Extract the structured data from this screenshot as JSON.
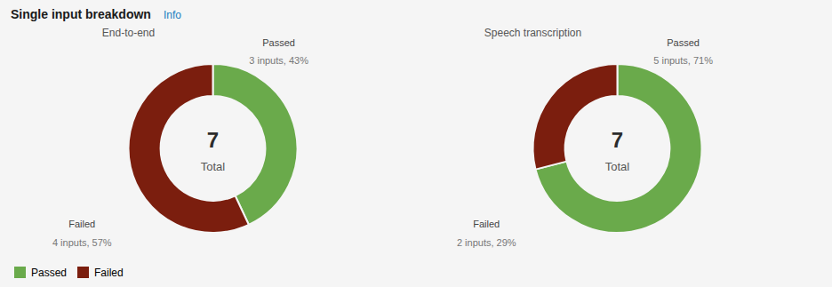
{
  "title": "Single input breakdown",
  "subtitle": "Info",
  "chart_data": [
    {
      "type": "pie",
      "title": "End-to-end",
      "total": 7,
      "center_label": "Total",
      "categories": [
        "Passed",
        "Failed"
      ],
      "values": [
        43,
        57
      ],
      "value_labels": [
        "3 inputs, 43%",
        "4 inputs, 57%"
      ],
      "colors": [
        "#6aaa4b",
        "#7b1e0e"
      ],
      "legend": "lower left"
    },
    {
      "type": "pie",
      "title": "Speech transcription",
      "total": 7,
      "center_label": "Total",
      "categories": [
        "Passed",
        "Failed"
      ],
      "values": [
        71,
        29
      ],
      "value_labels": [
        "5 inputs, 71%",
        "2 inputs, 29%"
      ],
      "colors": [
        "#6aaa4b",
        "#7b1e0e"
      ],
      "legend": "lower left"
    }
  ]
}
